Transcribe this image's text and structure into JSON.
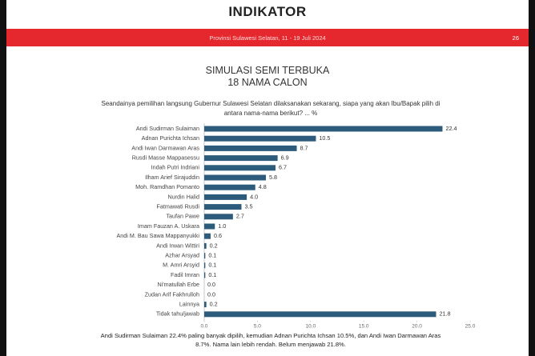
{
  "header": {
    "logo": "INDIKATOR",
    "region": "Provinsi Sulawesi Selatan, 11 - 19 Juli 2024",
    "page": "26"
  },
  "chart_data": {
    "type": "bar",
    "orientation": "horizontal",
    "title": "SIMULASI SEMI TERBUKA",
    "subtitle": "18 NAMA CALON",
    "question": "Seandainya pemilihan langsung Gubernur Sulawesi Selatan dilaksanakan sekarang, siapa yang akan Ibu/Bapak pilih di antara nama-nama berikut? ... %",
    "categories": [
      "Andi Sudirman Sulaiman",
      "Adnan Purichta Ichsan",
      "Andi Iwan Darmawan Aras",
      "Rusdi Masse Mappasessu",
      "Indah Putri Indriani",
      "Ilham Arief Sirajuddin",
      "Moh. Ramdhan Pomanto",
      "Nurdin Halid",
      "Fatmawati Rusdi",
      "Taufan Pawe",
      "Imam Fauzan A. Uskara",
      "Andi M. Bau Sawa Mappanyukki",
      "Andi Irwan Wittiri",
      "Azhar Arsyad",
      "M. Amri Arsyid",
      "Fadil Imran",
      "Ni'matullah Erbe",
      "Zudan Arif Fakhrulloh",
      "Lainnya",
      "Tidak tahu/jawab"
    ],
    "values": [
      22.4,
      10.5,
      8.7,
      6.9,
      6.7,
      5.8,
      4.8,
      4.0,
      3.5,
      2.7,
      1.0,
      0.6,
      0.2,
      0.1,
      0.1,
      0.1,
      0.0,
      0.0,
      0.2,
      21.8
    ],
    "value_labels": [
      "22.4",
      "10.5",
      "8.7",
      "6.9",
      "6.7",
      "5.8",
      "4.8",
      "4.0",
      "3.5",
      "2.7",
      "1.0",
      "0.6",
      "0.2",
      "0.1",
      "0.1",
      "0.1",
      "0.0",
      "0.0",
      "0.2",
      "21.8"
    ],
    "color": "#2d5b7b",
    "xlim": [
      0,
      25
    ],
    "xticks": [
      {
        "value": 0,
        "label": "0.0"
      },
      {
        "value": 5,
        "label": "5.0"
      },
      {
        "value": 10,
        "label": "10.0"
      },
      {
        "value": 15,
        "label": "15.0"
      },
      {
        "value": 20,
        "label": "20.0"
      },
      {
        "value": 25,
        "label": "25.0"
      }
    ],
    "grid": false,
    "note": "Andi Sudirman Sulaiman 22.4% paling banyak dipilih, kemudian Adnan Purichta Ichsan 10.5%, dan Andi Iwan Darmawan Aras 8.7%. Nama lain lebih rendah. Belum menjawab 21.8%."
  }
}
